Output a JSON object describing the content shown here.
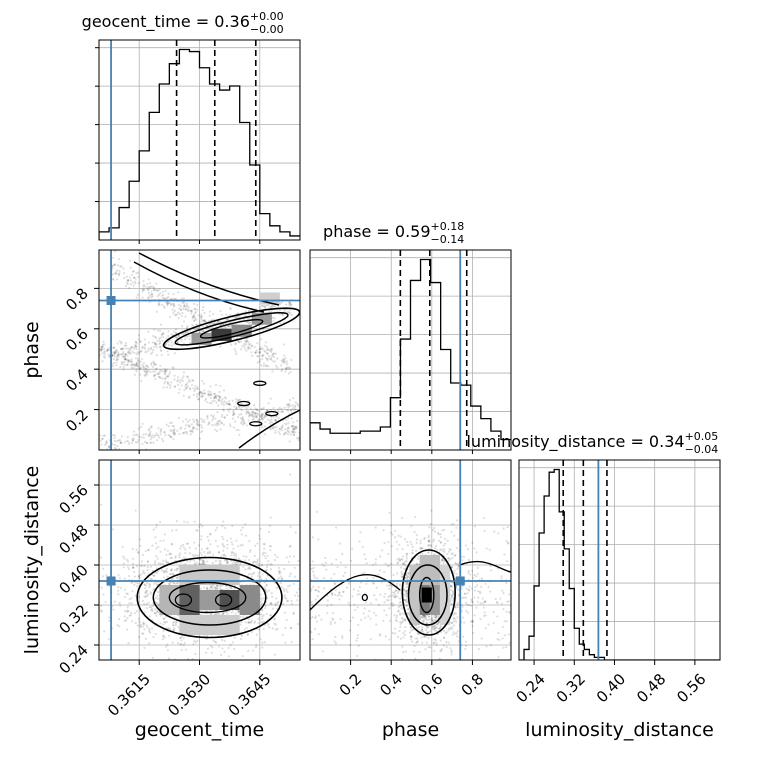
{
  "chart_data": {
    "type": "corner",
    "truth_color": "#4682b4",
    "parameters": [
      {
        "name": "geocent_time",
        "axis_label": "geocent_time",
        "range": [
          1126259642.3605,
          1126259642.3655
        ],
        "ticks": [
          1126259642.3615,
          1126259642.363,
          1126259642.3645
        ],
        "tick_labels": [
          "0.3615",
          "0.3630",
          "0.3645"
        ],
        "truth": 1126259642.3608,
        "title": {
          "label": "geocent_time",
          "median": "0.36",
          "plus": "+0.00",
          "minus": "−0.00"
        },
        "quantiles": [
          1126259642.36243,
          1126259642.36338,
          1126259642.3644
        ],
        "hist_edges_start": 1126259642.3605,
        "hist_bin_width": 0.00025,
        "hist_counts": [
          0.04,
          0.06,
          0.16,
          0.29,
          0.44,
          0.63,
          0.77,
          0.87,
          0.94,
          0.93,
          0.85,
          0.77,
          0.74,
          0.76,
          0.58,
          0.37,
          0.13,
          0.07,
          0.04,
          0.02
        ]
      },
      {
        "name": "phase",
        "axis_label": "phase",
        "range": [
          0.0,
          0.99
        ],
        "ticks": [
          0.2,
          0.4,
          0.6,
          0.8
        ],
        "tick_labels": [
          "0.2",
          "0.4",
          "0.6",
          "0.8"
        ],
        "truth": 0.74,
        "title": {
          "label": "phase",
          "median": "0.59",
          "plus": "+0.18",
          "minus": "−0.14"
        },
        "quantiles": [
          0.445,
          0.59,
          0.772
        ],
        "hist_edges_start": 0.0,
        "hist_bin_width": 0.0495,
        "hist_counts": [
          0.13,
          0.1,
          0.08,
          0.08,
          0.08,
          0.09,
          0.09,
          0.11,
          0.25,
          0.53,
          0.81,
          0.91,
          0.8,
          0.48,
          0.32,
          0.31,
          0.21,
          0.15,
          0.09,
          0.05
        ]
      },
      {
        "name": "luminosity_distance",
        "axis_label": "luminosity_distance",
        "range": [
          0.21,
          0.61
        ],
        "ticks": [
          0.24,
          0.32,
          0.4,
          0.48,
          0.56
        ],
        "tick_labels": [
          "0.24",
          "0.32",
          "0.40",
          "0.48",
          "0.56"
        ],
        "truth": 0.368,
        "title": {
          "label": "luminosity_distance",
          "median": "0.34",
          "plus": "+0.05",
          "minus": "−0.04"
        },
        "quantiles": [
          0.298,
          0.338,
          0.385
        ],
        "hist_edges_start": 0.21,
        "hist_bin_width": 0.01,
        "hist_counts": [
          0.0,
          0.04,
          0.09,
          0.28,
          0.48,
          0.62,
          0.71,
          0.72,
          0.56,
          0.42,
          0.27,
          0.12,
          0.06,
          0.04,
          0.02,
          0.01,
          0.01,
          0.0,
          0.0,
          0.0,
          0.0,
          0.0,
          0.0,
          0.0,
          0.0,
          0.0,
          0.0,
          0.0,
          0.0,
          0.0,
          0.0,
          0.0,
          0.0,
          0.0,
          0.0,
          0.0,
          0.0,
          0.0,
          0.0,
          0.0
        ]
      }
    ],
    "pair_panels": [
      {
        "x": "geocent_time",
        "y": "phase",
        "shape": "double-band",
        "centers": [
          [
            1126259642.3632,
            0.57
          ]
        ]
      },
      {
        "x": "geocent_time",
        "y": "luminosity_distance",
        "shape": "blob",
        "centers": [
          [
            1126259642.3632,
            0.33
          ]
        ]
      },
      {
        "x": "phase",
        "y": "luminosity_distance",
        "shape": "blob",
        "centers": [
          [
            0.58,
            0.34
          ]
        ]
      }
    ]
  }
}
